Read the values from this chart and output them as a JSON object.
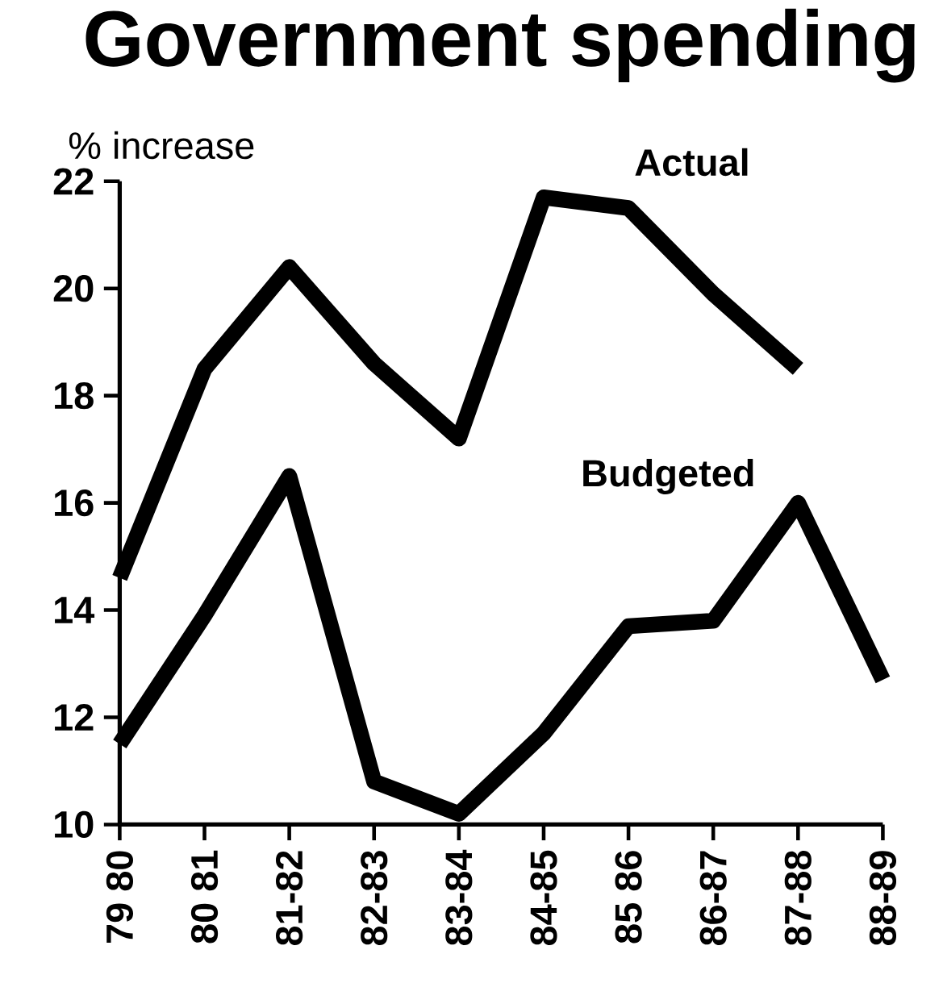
{
  "chart_data": {
    "type": "line",
    "title": "Government spending",
    "ylabel": "% increase",
    "categories": [
      "79 80",
      "80 81",
      "81-82",
      "82-83",
      "83-84",
      "84-85",
      "85 86",
      "86-87",
      "87-88",
      "88-89"
    ],
    "series": [
      {
        "name": "Actual",
        "color": "#000000",
        "values": [
          14.6,
          18.5,
          20.4,
          18.6,
          17.2,
          21.7,
          21.5,
          19.9,
          18.5,
          null
        ]
      },
      {
        "name": "Budgeted",
        "color": "#000000",
        "values": [
          11.5,
          13.9,
          16.5,
          10.8,
          10.2,
          11.7,
          13.7,
          13.8,
          16.0,
          12.7
        ]
      }
    ],
    "ylim": [
      10,
      22
    ],
    "yticks": [
      10,
      12,
      14,
      16,
      18,
      20,
      22
    ],
    "grid": false,
    "legend": false,
    "marker": "none"
  }
}
